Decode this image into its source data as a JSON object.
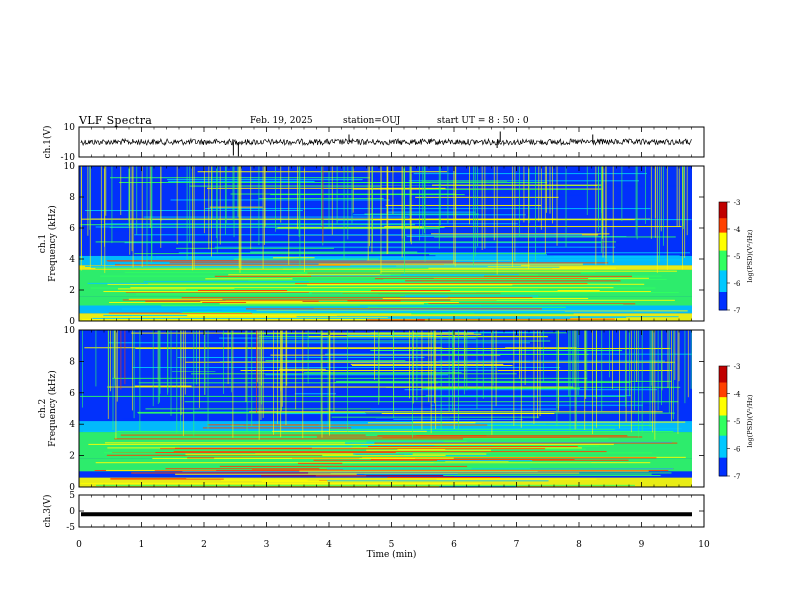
{
  "header": {
    "title": "VLF Spectra",
    "date": "Feb. 19, 2025",
    "station": "station=OUJ",
    "start": "start  UT  =   8 : 50 : 0"
  },
  "chart_data": [
    {
      "type": "line",
      "panel": "ch1-waveform",
      "ylabel": "ch.1(V)",
      "ylim": [
        -10,
        10
      ],
      "yticks": [
        "10",
        "-10"
      ],
      "xlim": [
        0,
        10
      ],
      "trace_level": 0,
      "spikes": [
        {
          "t": 2.47,
          "v": -9.0
        },
        {
          "t": 2.55,
          "v": -9.5
        },
        {
          "t": 4.32,
          "v": 5.0
        },
        {
          "t": 6.74,
          "v": 7.0
        },
        {
          "t": 6.69,
          "v": -4.0
        },
        {
          "t": 8.22,
          "v": 5.0
        }
      ]
    },
    {
      "type": "heatmap",
      "panel": "ch1-spectrogram",
      "ylabel": "ch.1\nFrequency (kHz)",
      "ylim": [
        0,
        10
      ],
      "yticks": [
        "0",
        "2",
        "4",
        "6",
        "8",
        "10"
      ],
      "xlim": [
        0,
        10
      ],
      "colorbar": {
        "label": "log(PSD)(V²/Hz)",
        "range": [
          -7,
          -3
        ],
        "ticks": [
          "-3",
          "-4",
          "-5",
          "-6",
          "-7"
        ]
      }
    },
    {
      "type": "heatmap",
      "panel": "ch2-spectrogram",
      "ylabel": "ch.2\nFrequency (kHz)",
      "ylim": [
        0,
        10
      ],
      "yticks": [
        "0",
        "2",
        "4",
        "6",
        "8",
        "10"
      ],
      "xlim": [
        0,
        10
      ],
      "colorbar": {
        "label": "log(PSD)(V²/Hz)",
        "range": [
          -7,
          -3
        ],
        "ticks": [
          "-3",
          "-4",
          "-5",
          "-6",
          "-7"
        ]
      }
    },
    {
      "type": "line",
      "panel": "ch3-waveform",
      "ylabel": "ch.3(V)",
      "ylim": [
        -5,
        5
      ],
      "yticks": [
        "5",
        "0",
        "-5"
      ],
      "xlim": [
        0,
        10
      ],
      "trace_level": -1
    }
  ],
  "xaxis": {
    "label": "Time  (min)",
    "ticks": [
      "0",
      "1",
      "2",
      "3",
      "4",
      "5",
      "6",
      "7",
      "8",
      "9",
      "10"
    ]
  },
  "colors": {
    "spectrogram_background": "#1a3fd0",
    "trace": "#000000"
  }
}
